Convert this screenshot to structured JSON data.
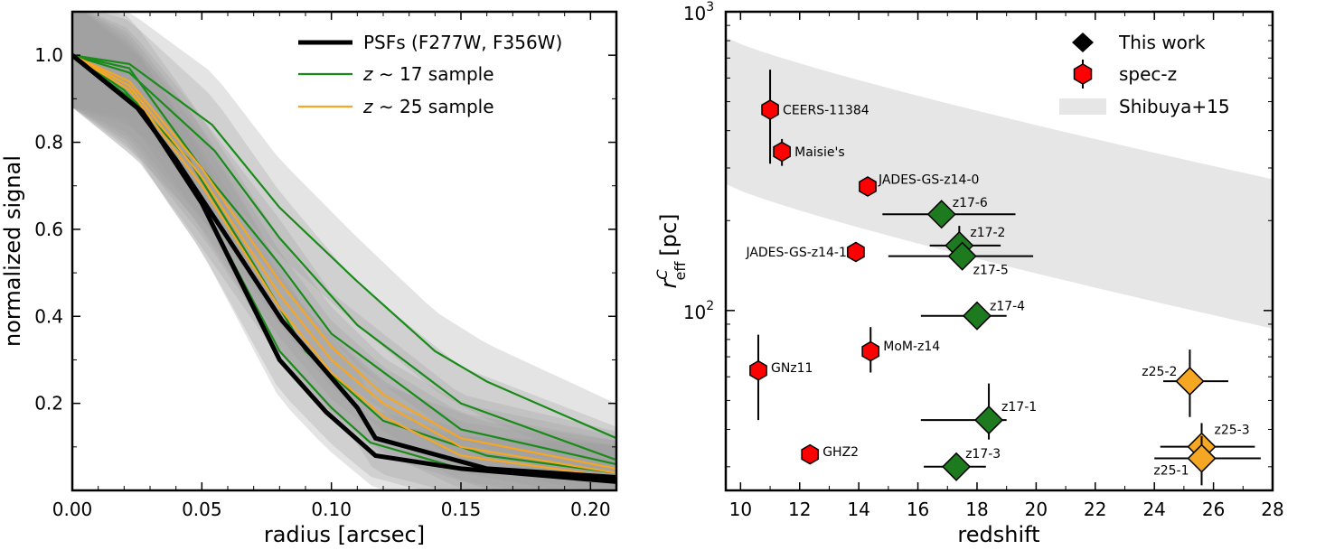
{
  "chart_data": [
    {
      "type": "line",
      "xlabel": "radius [arcsec]",
      "ylabel": "normalized signal",
      "xlim": [
        0,
        0.21
      ],
      "ylim": [
        0,
        1.1
      ],
      "xticks": [
        0.0,
        0.05,
        0.1,
        0.15,
        0.2
      ],
      "xtick_labels": [
        "0.00",
        "0.05",
        "0.10",
        "0.15",
        "0.20"
      ],
      "yticks": [
        0.2,
        0.4,
        0.6,
        0.8,
        1.0
      ],
      "ytick_labels": [
        "0.2",
        "0.4",
        "0.6",
        "0.8",
        "1.0"
      ],
      "legend": {
        "position": "top-right",
        "entries": [
          {
            "label": "PSFs (F277W, F356W)",
            "color": "#000000"
          },
          {
            "label": "z ~ 17 sample",
            "color": "#1a8a1a"
          },
          {
            "label": "z ~ 25 sample",
            "color": "#f5a623"
          }
        ]
      },
      "band_color": "#9e9e9e",
      "psf": [
        {
          "name": "F277W",
          "x": [
            0,
            0.027,
            0.05,
            0.08,
            0.098,
            0.117,
            0.15,
            0.21
          ],
          "y": [
            1.0,
            0.87,
            0.66,
            0.3,
            0.18,
            0.08,
            0.05,
            0.02
          ]
        },
        {
          "name": "F356W",
          "x": [
            0,
            0.025,
            0.04,
            0.06,
            0.081,
            0.11,
            0.117,
            0.16,
            0.21
          ],
          "y": [
            1.0,
            0.88,
            0.76,
            0.58,
            0.39,
            0.19,
            0.12,
            0.05,
            0.03
          ]
        }
      ],
      "series_z17": [
        {
          "x": [
            0,
            0.022,
            0.054,
            0.08,
            0.11,
            0.14,
            0.16,
            0.21
          ],
          "y": [
            1.0,
            0.98,
            0.84,
            0.65,
            0.48,
            0.32,
            0.25,
            0.12
          ]
        },
        {
          "x": [
            0,
            0.022,
            0.055,
            0.08,
            0.11,
            0.15,
            0.21
          ],
          "y": [
            1.0,
            0.96,
            0.78,
            0.58,
            0.38,
            0.2,
            0.07
          ]
        },
        {
          "x": [
            0,
            0.022,
            0.05,
            0.08,
            0.1,
            0.15,
            0.21
          ],
          "y": [
            1.0,
            0.97,
            0.74,
            0.52,
            0.36,
            0.14,
            0.06
          ]
        },
        {
          "x": [
            0,
            0.02,
            0.045,
            0.07,
            0.09,
            0.12,
            0.16,
            0.21
          ],
          "y": [
            1.0,
            0.92,
            0.76,
            0.52,
            0.32,
            0.16,
            0.08,
            0.04
          ]
        },
        {
          "x": [
            0,
            0.025,
            0.05,
            0.08,
            0.1,
            0.115,
            0.15,
            0.21
          ],
          "y": [
            1.0,
            0.89,
            0.66,
            0.32,
            0.19,
            0.11,
            0.05,
            0.03
          ]
        }
      ],
      "series_z25": [
        {
          "x": [
            0,
            0.022,
            0.05,
            0.08,
            0.1,
            0.12,
            0.15,
            0.21
          ],
          "y": [
            1.0,
            0.94,
            0.74,
            0.48,
            0.33,
            0.22,
            0.12,
            0.05
          ]
        },
        {
          "x": [
            0,
            0.022,
            0.05,
            0.08,
            0.1,
            0.12,
            0.15,
            0.21
          ],
          "y": [
            1.0,
            0.93,
            0.72,
            0.45,
            0.3,
            0.2,
            0.1,
            0.04
          ]
        },
        {
          "x": [
            0,
            0.022,
            0.05,
            0.08,
            0.1,
            0.12,
            0.15,
            0.21
          ],
          "y": [
            1.0,
            0.92,
            0.7,
            0.42,
            0.27,
            0.17,
            0.08,
            0.03
          ]
        }
      ]
    },
    {
      "type": "scatter",
      "xlabel": "redshift",
      "ylabel_main": "r",
      "ylabel_sup": "C",
      "ylabel_sub": "eff",
      "ylabel_unit": "[pc]",
      "yscale": "log",
      "xlim": [
        9.5,
        28
      ],
      "ylim": [
        25,
        1000
      ],
      "xticks": [
        10,
        12,
        14,
        16,
        18,
        20,
        22,
        24,
        26,
        28
      ],
      "xtick_labels": [
        "10",
        "12",
        "14",
        "16",
        "18",
        "20",
        "22",
        "24",
        "26",
        "28"
      ],
      "ytick_major": [
        {
          "value": 100,
          "base": "10",
          "exp": "2"
        },
        {
          "value": 1000,
          "base": "10",
          "exp": "3"
        }
      ],
      "legend": {
        "position": "top-right",
        "entries": [
          {
            "label": "This work",
            "marker": "diamond",
            "color": "#000000"
          },
          {
            "label": "spec-z",
            "marker": "hexagon",
            "color": "#ff0000"
          },
          {
            "label": "Shibuya+15",
            "marker": "band",
            "color": "#e6e6e6"
          }
        ]
      },
      "shibuya_band": {
        "x": [
          9.5,
          28
        ],
        "y_upper": [
          820,
          275
        ],
        "y_lower": [
          265,
          87
        ]
      },
      "spec_z": [
        {
          "label": "CEERS-11384",
          "x": 11.0,
          "y": 470,
          "yerr": [
            310,
            640
          ]
        },
        {
          "label": "Maisie's",
          "x": 11.4,
          "y": 340,
          "yerr": [
            305,
            375
          ]
        },
        {
          "label": "JADES-GS-z14-0",
          "x": 14.3,
          "y": 260
        },
        {
          "label": "JADES-GS-z14-1",
          "x": 13.9,
          "y": 157
        },
        {
          "label": "MoM-z14",
          "x": 14.4,
          "y": 73,
          "yerr": [
            62,
            88
          ]
        },
        {
          "label": "GNz11",
          "x": 10.6,
          "y": 63,
          "yerr": [
            43,
            83
          ]
        },
        {
          "label": "GHZ2",
          "x": 12.35,
          "y": 33
        }
      ],
      "this_work": [
        {
          "label": "z17-6",
          "x": 16.8,
          "y": 210,
          "xerr": [
            14.8,
            19.3
          ],
          "color": "#1e7a1e"
        },
        {
          "label": "z17-2",
          "x": 17.4,
          "y": 165,
          "xerr": [
            16.4,
            18.8
          ],
          "yerr": [
            145,
            192
          ],
          "color": "#1e7a1e"
        },
        {
          "label": "z17-5",
          "x": 17.5,
          "y": 152,
          "xerr": [
            15.0,
            19.9
          ],
          "yerr": [
            138,
            168
          ],
          "color": "#1e7a1e"
        },
        {
          "label": "z17-4",
          "x": 18.0,
          "y": 96,
          "xerr": [
            16.1,
            19.0
          ],
          "color": "#1e7a1e"
        },
        {
          "label": "z17-1",
          "x": 18.4,
          "y": 43,
          "xerr": [
            16.1,
            19.0
          ],
          "yerr": [
            37,
            57
          ],
          "color": "#1e7a1e"
        },
        {
          "label": "z17-3",
          "x": 17.3,
          "y": 30,
          "xerr": [
            16.2,
            18.3
          ],
          "color": "#1e7a1e"
        },
        {
          "label": "z25-2",
          "x": 25.2,
          "y": 58,
          "xerr": [
            24.3,
            26.5
          ],
          "yerr": [
            44,
            74
          ],
          "color": "#f5a623"
        },
        {
          "label": "z25-3",
          "x": 25.6,
          "y": 35,
          "xerr": [
            24.2,
            27.4
          ],
          "yerr": [
            28,
            42
          ],
          "color": "#f5a623"
        },
        {
          "label": "z25-1",
          "x": 25.6,
          "y": 32,
          "xerr": [
            24.0,
            27.6
          ],
          "yerr": [
            26,
            38
          ],
          "color": "#f5a623"
        }
      ]
    }
  ]
}
